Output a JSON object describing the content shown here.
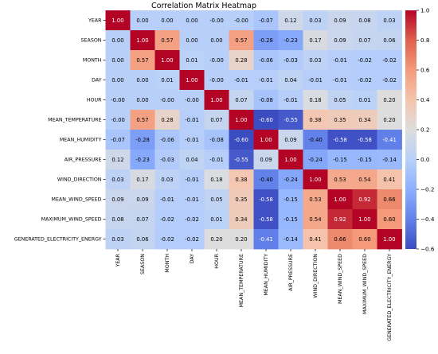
{
  "chart_data": {
    "type": "heatmap",
    "title": "Correlation Matrix Heatmap",
    "xlabel": "",
    "ylabel": "",
    "labels": [
      "YEAR",
      "SEASON",
      "MONTH",
      "DAY",
      "HOUR",
      "MEAN_TEMPERATURE",
      "MEAN_HUMIDITY",
      "AIR_PRESSURE",
      "WIND_DIRECTION",
      "MEAN_WIND_SPEED",
      "MAXIMUM_WIND_SPEED",
      "GENERATED_ELECTRICITY_ENERGY"
    ],
    "values": [
      [
        1.0,
        0.0,
        0.0,
        0.0,
        -0.0,
        -0.0,
        -0.07,
        0.12,
        0.03,
        0.09,
        0.08,
        0.03
      ],
      [
        0.0,
        1.0,
        0.57,
        0.0,
        0.0,
        0.57,
        -0.28,
        -0.23,
        0.17,
        0.09,
        0.07,
        0.06
      ],
      [
        0.0,
        0.57,
        1.0,
        0.01,
        -0.0,
        0.28,
        -0.06,
        -0.03,
        0.03,
        -0.01,
        -0.02,
        -0.02
      ],
      [
        0.0,
        0.0,
        0.01,
        1.0,
        -0.0,
        -0.01,
        -0.01,
        0.04,
        -0.01,
        -0.01,
        -0.02,
        -0.02
      ],
      [
        -0.0,
        0.0,
        -0.0,
        -0.0,
        1.0,
        0.07,
        -0.08,
        -0.01,
        0.18,
        0.05,
        0.01,
        0.2
      ],
      [
        -0.0,
        0.57,
        0.28,
        -0.01,
        0.07,
        1.0,
        -0.6,
        -0.55,
        0.38,
        0.35,
        0.34,
        0.2
      ],
      [
        -0.07,
        -0.28,
        -0.06,
        -0.01,
        -0.08,
        -0.6,
        1.0,
        0.09,
        -0.4,
        -0.58,
        -0.58,
        -0.41
      ],
      [
        0.12,
        -0.23,
        -0.03,
        0.04,
        -0.01,
        -0.55,
        0.09,
        1.0,
        -0.24,
        -0.15,
        -0.15,
        -0.14
      ],
      [
        0.03,
        0.17,
        0.03,
        -0.01,
        0.18,
        0.38,
        -0.4,
        -0.24,
        1.0,
        0.53,
        0.54,
        0.41
      ],
      [
        0.09,
        0.09,
        -0.01,
        -0.01,
        0.05,
        0.35,
        -0.58,
        -0.15,
        0.53,
        1.0,
        0.92,
        0.66
      ],
      [
        0.08,
        0.07,
        -0.02,
        -0.02,
        0.01,
        0.34,
        -0.58,
        -0.15,
        0.54,
        0.92,
        1.0,
        0.6
      ],
      [
        0.03,
        0.06,
        -0.02,
        -0.02,
        0.2,
        0.2,
        -0.41,
        -0.14,
        0.41,
        0.66,
        0.6,
        1.0
      ]
    ],
    "value_range": [
      -0.6,
      1.0
    ],
    "colormap": "coolwarm",
    "colorbar_ticks": [
      "1.0",
      "0.8",
      "0.6",
      "0.4",
      "0.2",
      "0.0",
      "−0.2",
      "−0.4",
      "−0.6"
    ],
    "colorbar_tick_values": [
      1.0,
      0.8,
      0.6,
      0.4,
      0.2,
      0.0,
      -0.2,
      -0.4,
      -0.6
    ],
    "annotations_on": true,
    "legend": "colorbar-right"
  }
}
